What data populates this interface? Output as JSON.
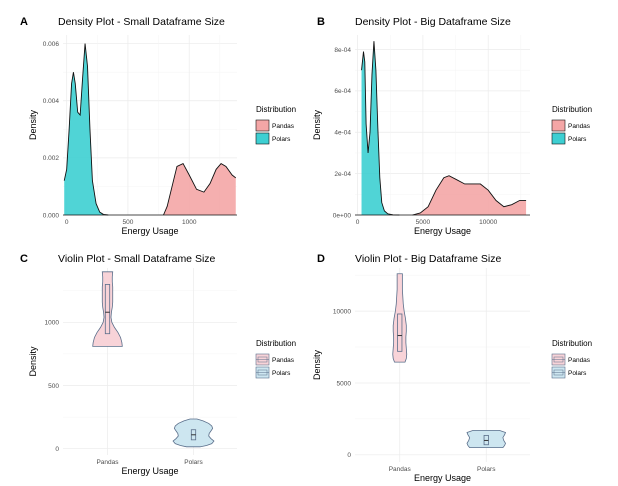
{
  "chart_data": [
    {
      "id": "A",
      "type": "area",
      "letter": "A",
      "title": "Density Plot - Small Dataframe Size",
      "xlabel": "Energy Usage",
      "ylabel": "Density",
      "xlim": [
        -30,
        1390
      ],
      "ylim": [
        0,
        0.0063
      ],
      "x_ticks": [
        0,
        500,
        1000
      ],
      "x_tick_labels": [
        "0",
        "500",
        "1000"
      ],
      "y_ticks": [
        0,
        0.002,
        0.004,
        0.006
      ],
      "y_tick_labels": [
        "0.000",
        "0.002",
        "0.004",
        "0.006"
      ],
      "legend_title": "Distribution",
      "series": [
        {
          "name": "Pandas",
          "x": [
            790,
            820,
            860,
            900,
            950,
            1000,
            1060,
            1120,
            1170,
            1220,
            1260,
            1300,
            1350,
            1380
          ],
          "y": [
            0.0,
            0.0003,
            0.001,
            0.0017,
            0.0018,
            0.0014,
            0.0009,
            0.0008,
            0.0011,
            0.0016,
            0.0018,
            0.0017,
            0.0014,
            0.0013
          ]
        },
        {
          "name": "Polars",
          "x": [
            -20,
            0,
            20,
            40,
            55,
            70,
            90,
            110,
            130,
            150,
            170,
            190,
            210,
            240,
            270,
            300,
            340
          ],
          "y": [
            0.0012,
            0.0016,
            0.003,
            0.0046,
            0.005,
            0.0046,
            0.0036,
            0.0035,
            0.0048,
            0.006,
            0.0052,
            0.003,
            0.0012,
            0.0004,
            0.0001,
            2e-05,
            0.0
          ]
        }
      ]
    },
    {
      "id": "B",
      "type": "area",
      "letter": "B",
      "title": "Density Plot - Big Dataframe Size",
      "xlabel": "Energy Usage",
      "ylabel": "Density",
      "xlim": [
        -200,
        13200
      ],
      "ylim": [
        0,
        0.00087
      ],
      "x_ticks": [
        0,
        5000,
        10000
      ],
      "x_tick_labels": [
        "0",
        "5000",
        "10000"
      ],
      "y_ticks": [
        0,
        0.0002,
        0.0004,
        0.0006,
        0.0008
      ],
      "y_tick_labels": [
        "0e+00",
        "2e-04",
        "4e-04",
        "6e-04",
        "8e-04"
      ],
      "legend_title": "Distribution",
      "series": [
        {
          "name": "Pandas",
          "x": [
            4200,
            4800,
            5400,
            6000,
            6600,
            7000,
            7600,
            8200,
            8800,
            9400,
            10000,
            10600,
            11200,
            11800,
            12400,
            12900
          ],
          "y": [
            0.0,
            1e-05,
            4e-05,
            0.00012,
            0.00018,
            0.00019,
            0.00017,
            0.00015,
            0.00015,
            0.00015,
            0.00012,
            7e-05,
            4e-05,
            5e-05,
            7e-05,
            7e-05
          ]
        },
        {
          "name": "Polars",
          "x": [
            300,
            450,
            550,
            650,
            800,
            950,
            1100,
            1250,
            1400,
            1550,
            1700,
            1850,
            2050,
            2300,
            2700,
            3200
          ],
          "y": [
            0.0007,
            0.00079,
            0.00074,
            0.00044,
            0.0003,
            0.0004,
            0.00068,
            0.00084,
            0.0007,
            0.00042,
            0.00018,
            6e-05,
            2e-05,
            6e-06,
            1e-06,
            0.0
          ]
        }
      ]
    },
    {
      "id": "C",
      "type": "violin",
      "letter": "C",
      "title": "Violin Plot - Small Dataframe Size",
      "xlabel": "Energy Usage",
      "ylabel": "Density",
      "categories": [
        "Pandas",
        "Polars"
      ],
      "ylim": [
        -50,
        1430
      ],
      "y_ticks": [
        0,
        500,
        1000
      ],
      "y_tick_labels": [
        "0",
        "500",
        "1000"
      ],
      "legend_title": "Distribution",
      "series": [
        {
          "name": "Pandas",
          "profile_y": [
            810,
            840,
            880,
            920,
            960,
            1000,
            1040,
            1080,
            1120,
            1160,
            1200,
            1240,
            1280,
            1320,
            1360,
            1400
          ],
          "profile_w": [
            0.34,
            0.33,
            0.3,
            0.24,
            0.16,
            0.1,
            0.08,
            0.09,
            0.11,
            0.12,
            0.12,
            0.12,
            0.12,
            0.11,
            0.11,
            0.12
          ],
          "box": {
            "q1": 910,
            "median": 1080,
            "q3": 1300
          }
        },
        {
          "name": "Polars",
          "profile_y": [
            15,
            25,
            40,
            60,
            80,
            100,
            120,
            140,
            160,
            180,
            200,
            220,
            235
          ],
          "profile_w": [
            0.16,
            0.3,
            0.42,
            0.47,
            0.4,
            0.35,
            0.36,
            0.4,
            0.44,
            0.42,
            0.35,
            0.22,
            0.08
          ],
          "box": {
            "q1": 70,
            "median": 110,
            "q3": 150
          }
        }
      ]
    },
    {
      "id": "D",
      "type": "violin",
      "letter": "D",
      "title": "Violin Plot - Big Dataframe Size",
      "xlabel": "Energy Usage",
      "ylabel": "Density",
      "categories": [
        "Pandas",
        "Polars"
      ],
      "ylim": [
        -500,
        13000
      ],
      "y_ticks": [
        0,
        5000,
        10000
      ],
      "y_tick_labels": [
        "0",
        "5000",
        "10000"
      ],
      "legend_title": "Distribution",
      "series": [
        {
          "name": "Pandas",
          "profile_y": [
            6450,
            6700,
            7000,
            7400,
            7800,
            8200,
            8600,
            9000,
            9500,
            10000,
            10500,
            11000,
            11500,
            12000,
            12600
          ],
          "profile_w": [
            0.12,
            0.15,
            0.16,
            0.15,
            0.14,
            0.14,
            0.15,
            0.15,
            0.13,
            0.1,
            0.08,
            0.07,
            0.06,
            0.06,
            0.06
          ],
          "box": {
            "q1": 7200,
            "median": 8300,
            "q3": 9800
          }
        },
        {
          "name": "Polars",
          "profile_y": [
            500,
            650,
            800,
            1000,
            1200,
            1400,
            1550,
            1700
          ],
          "profile_w": [
            0.38,
            0.42,
            0.44,
            0.4,
            0.38,
            0.42,
            0.44,
            0.3
          ],
          "box": {
            "q1": 700,
            "median": 1000,
            "q3": 1350
          }
        }
      ]
    }
  ],
  "colors": {
    "Pandas": "#f4a6a6",
    "Polars": "#3dcfd2",
    "PandasViolin": "#f8d3d8",
    "PolarsViolin": "#cde6f0",
    "violin_stroke": "#5a6e8a"
  }
}
